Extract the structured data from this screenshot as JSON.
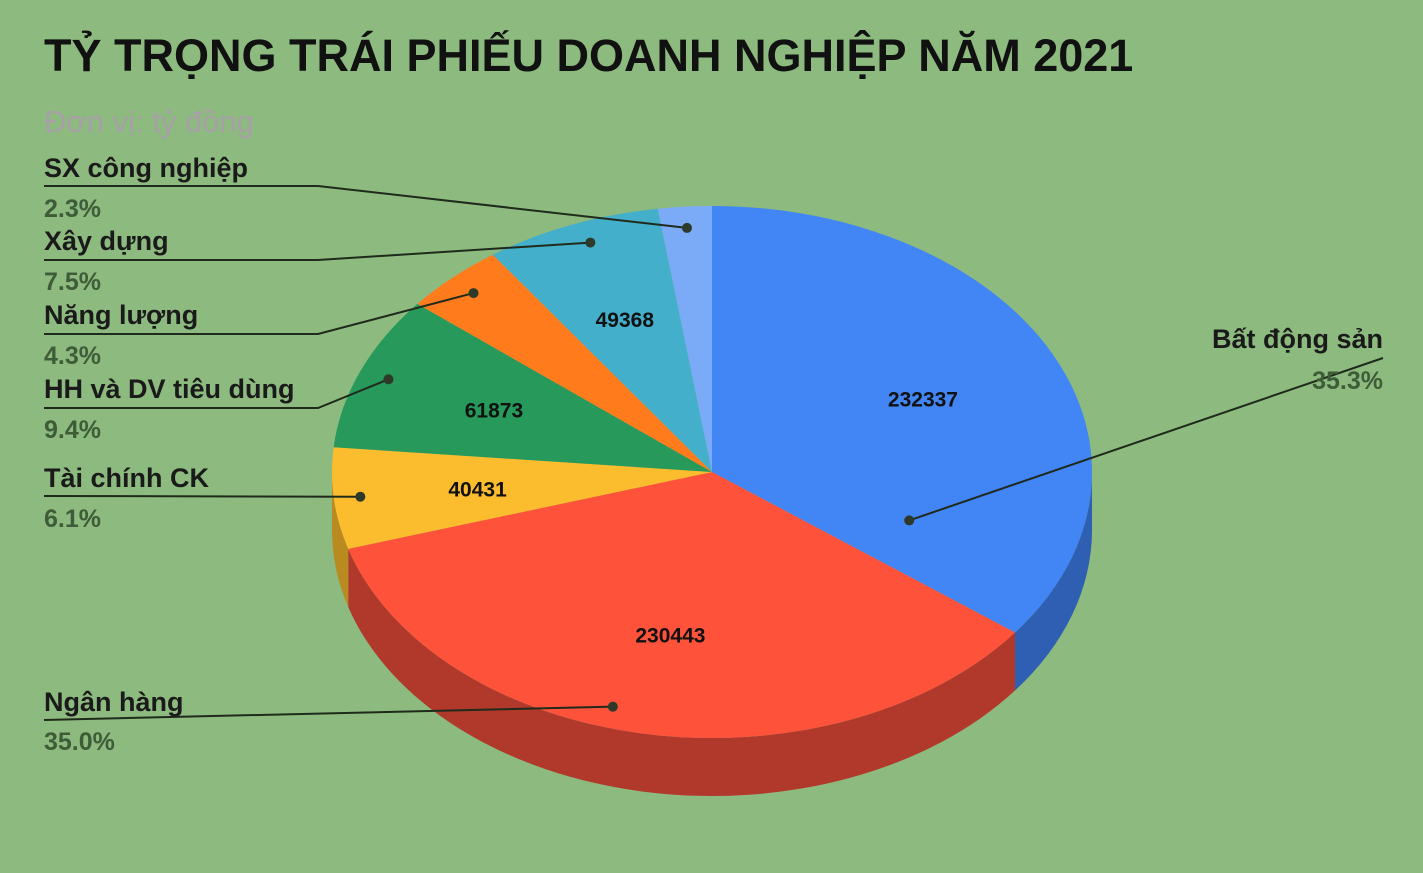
{
  "title": "TỶ TRỌNG TRÁI PHIẾU DOANH NGHIỆP NĂM 2021",
  "subtitle": "Đơn vị: tỷ đồng",
  "chart_data": {
    "type": "pie",
    "title": "TỶ TRỌNG TRÁI PHIẾU DOANH NGHIỆP NĂM 2021",
    "subtitle": "Đơn vị: tỷ đồng",
    "style": "3d",
    "legend": "none",
    "slices": [
      {
        "label": "Bất động sản",
        "value": 232337,
        "percent": "35.3%",
        "show_value": true,
        "color": "#4285f4",
        "side_color": "#2f5fb3"
      },
      {
        "label": "Ngân hàng",
        "value": 230443,
        "percent": "35.0%",
        "show_value": true,
        "color": "#fe523b",
        "side_color": "#b0392b"
      },
      {
        "label": "Tài chính CK",
        "value": 40431,
        "percent": "6.1%",
        "show_value": true,
        "color": "#fbbc2d",
        "side_color": "#b88a1f"
      },
      {
        "label": "HH và DV tiêu dùng",
        "value": 61873,
        "percent": "9.4%",
        "show_value": true,
        "color": "#27995a",
        "side_color": "#1c6e41"
      },
      {
        "label": "Năng lượng",
        "value": 28500,
        "percent": "4.3%",
        "show_value": false,
        "color": "#ff7b1c",
        "side_color": "#b85914"
      },
      {
        "label": "Xây dựng",
        "value": 49368,
        "percent": "7.5%",
        "show_value": true,
        "color": "#43afca",
        "side_color": "#307f93"
      },
      {
        "label": "SX công nghiệp",
        "value": 15000,
        "percent": "2.3%",
        "show_value": false,
        "color": "#7baaf7",
        "side_color": "#5a7db5"
      }
    ]
  }
}
